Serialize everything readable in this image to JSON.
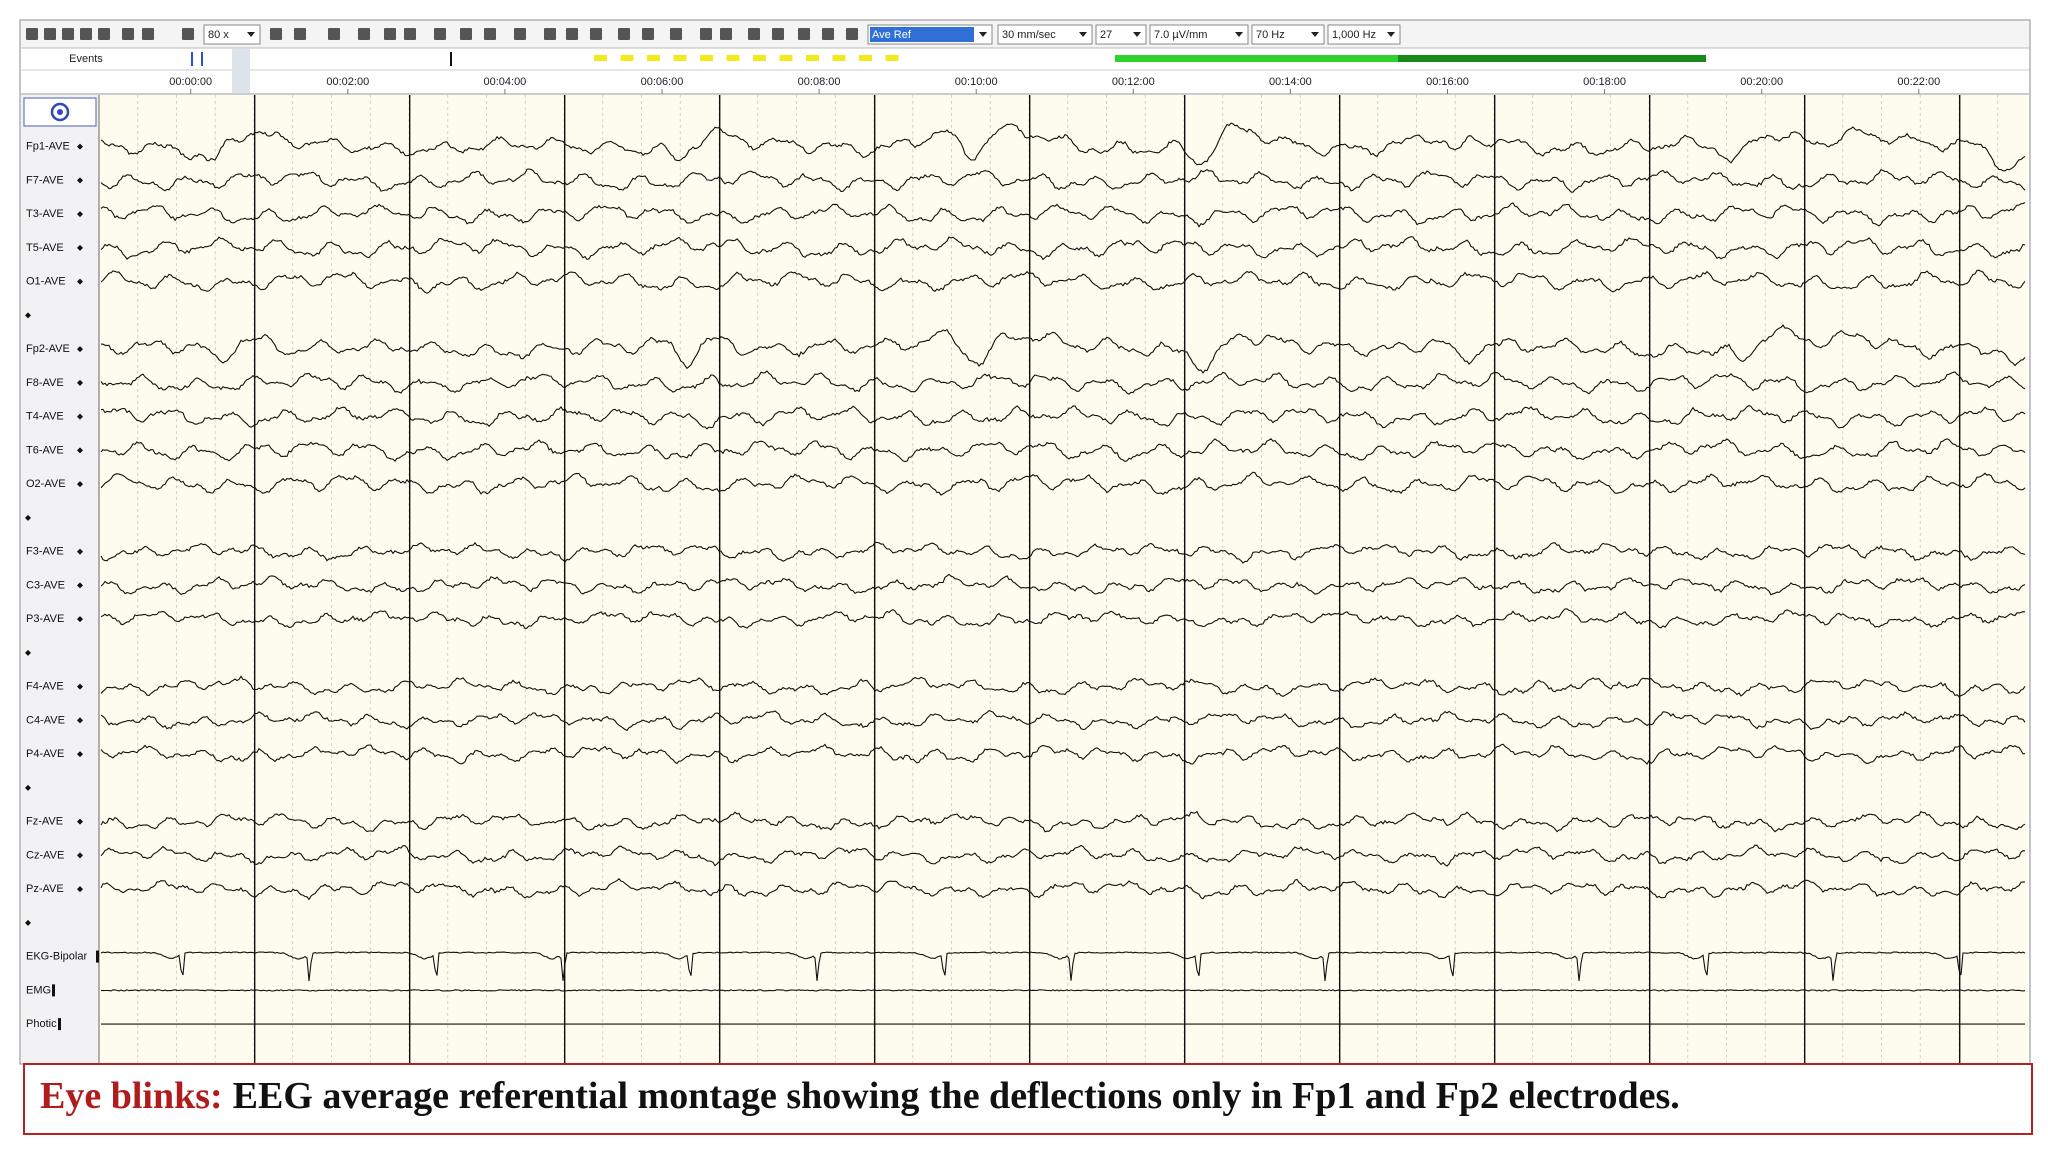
{
  "toolbar": {
    "fields": [
      "80 x",
      "Ave Ref",
      "30 mm/sec",
      "27",
      "7.0 µV/mm",
      "70 Hz",
      "1,000 Hz"
    ]
  },
  "events": {
    "label": "Events"
  },
  "timeline": {
    "labels": [
      "00:00:00",
      "00:02:00",
      "00:04:00",
      "00:06:00",
      "00:08:00",
      "00:10:00",
      "00:12:00",
      "00:14:00",
      "00:16:00",
      "00:18:00",
      "00:20:00",
      "00:22:00"
    ]
  },
  "channel_groups": [
    [
      "Fp1-AVE",
      "F7-AVE",
      "T3-AVE",
      "T5-AVE",
      "O1-AVE"
    ],
    [
      "Fp2-AVE",
      "F8-AVE",
      "T4-AVE",
      "T6-AVE",
      "O2-AVE"
    ],
    [
      "F3-AVE",
      "C3-AVE",
      "P3-AVE"
    ],
    [
      "F4-AVE",
      "C4-AVE",
      "P4-AVE"
    ],
    [
      "Fz-AVE",
      "Cz-AVE",
      "Pz-AVE"
    ],
    [
      "EKG-Bipolar",
      "EMG",
      "Photic"
    ]
  ],
  "caption": {
    "lead": "Eye blinks:",
    "text": "EEG average referential montage showing the deflections only in Fp1 and Fp2 electrodes."
  }
}
